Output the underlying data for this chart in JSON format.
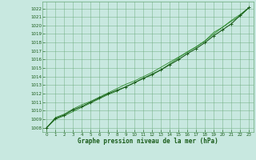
{
  "bg_color": "#c8e8e0",
  "grid_color": "#6aaa7a",
  "line_color_main": "#1a5c1a",
  "line_color_thin": "#2d8b2d",
  "marker_color": "#1a5c1a",
  "xlabel": "Graphe pression niveau de la mer (hPa)",
  "xlabel_color": "#1a5c1a",
  "ylim": [
    1007.5,
    1022.8
  ],
  "xlim": [
    -0.5,
    23.5
  ],
  "yticks": [
    1008,
    1009,
    1010,
    1011,
    1012,
    1013,
    1014,
    1015,
    1016,
    1017,
    1018,
    1019,
    1020,
    1021,
    1022
  ],
  "xticks": [
    0,
    1,
    2,
    3,
    4,
    5,
    6,
    7,
    8,
    9,
    10,
    11,
    12,
    13,
    14,
    15,
    16,
    17,
    18,
    19,
    20,
    21,
    22,
    23
  ],
  "hours": [
    0,
    1,
    2,
    3,
    4,
    5,
    6,
    7,
    8,
    9,
    10,
    11,
    12,
    13,
    14,
    15,
    16,
    17,
    18,
    19,
    20,
    21,
    22,
    23
  ],
  "pressure_main": [
    1008.0,
    1009.1,
    1009.5,
    1010.1,
    1010.5,
    1011.0,
    1011.5,
    1012.0,
    1012.4,
    1012.8,
    1013.3,
    1013.8,
    1014.3,
    1014.8,
    1015.4,
    1016.0,
    1016.7,
    1017.3,
    1018.0,
    1018.8,
    1019.5,
    1020.2,
    1021.2,
    1022.1
  ],
  "pressure_line2": [
    1008.0,
    1009.0,
    1009.4,
    1009.9,
    1010.4,
    1010.9,
    1011.4,
    1011.9,
    1012.3,
    1012.8,
    1013.3,
    1013.8,
    1014.2,
    1014.8,
    1015.5,
    1016.2,
    1016.9,
    1017.5,
    1018.2,
    1019.2,
    1019.8,
    1020.6,
    1021.3,
    1022.1
  ],
  "pressure_line3": [
    1008.0,
    1009.2,
    1009.6,
    1010.2,
    1010.7,
    1011.1,
    1011.6,
    1012.1,
    1012.6,
    1013.1,
    1013.5,
    1014.0,
    1014.5,
    1015.1,
    1015.7,
    1016.3,
    1016.9,
    1017.5,
    1018.2,
    1019.0,
    1019.8,
    1020.5,
    1021.1,
    1022.1
  ]
}
